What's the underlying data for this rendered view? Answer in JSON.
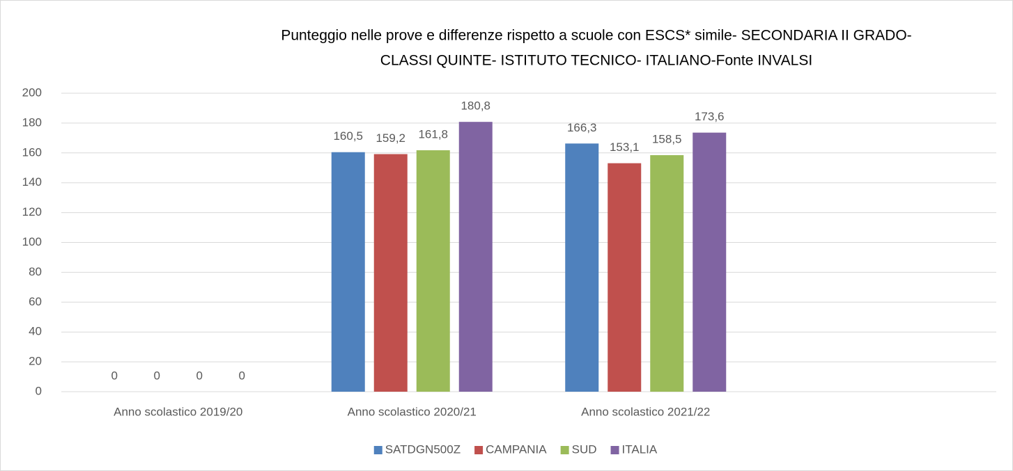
{
  "chart_data": {
    "type": "bar",
    "title": [
      "Punteggio nelle prove e differenze rispetto a scuole con ESCS* simile- SECONDARIA II GRADO-",
      "CLASSI QUINTE- ISTITUTO TECNICO- ITALIANO-Fonte INVALSI"
    ],
    "categories": [
      "Anno scolastico 2019/20",
      "Anno scolastico 2020/21",
      "Anno scolastico 2021/22",
      null
    ],
    "series": [
      {
        "name": "SATDGN500Z",
        "color": "#4f81bd",
        "values": [
          0,
          160.5,
          166.3,
          null
        ],
        "value_labels": [
          "0",
          "160,5",
          "166,3",
          null
        ]
      },
      {
        "name": "CAMPANIA",
        "color": "#c0504d",
        "values": [
          0,
          159.2,
          153.1,
          null
        ],
        "value_labels": [
          "0",
          "159,2",
          "153,1",
          null
        ]
      },
      {
        "name": "SUD",
        "color": "#9bbb59",
        "values": [
          0,
          161.8,
          158.5,
          null
        ],
        "value_labels": [
          "0",
          "161,8",
          "158,5",
          null
        ]
      },
      {
        "name": "ITALIA",
        "color": "#8064a2",
        "values": [
          0,
          180.8,
          173.6,
          null
        ],
        "value_labels": [
          "0",
          "180,8",
          "173,6",
          null
        ]
      }
    ],
    "ylim": [
      0,
      200
    ],
    "yticks": [
      0,
      20,
      40,
      60,
      80,
      100,
      120,
      140,
      160,
      180,
      200
    ],
    "grid": true,
    "legend": "bottom"
  }
}
